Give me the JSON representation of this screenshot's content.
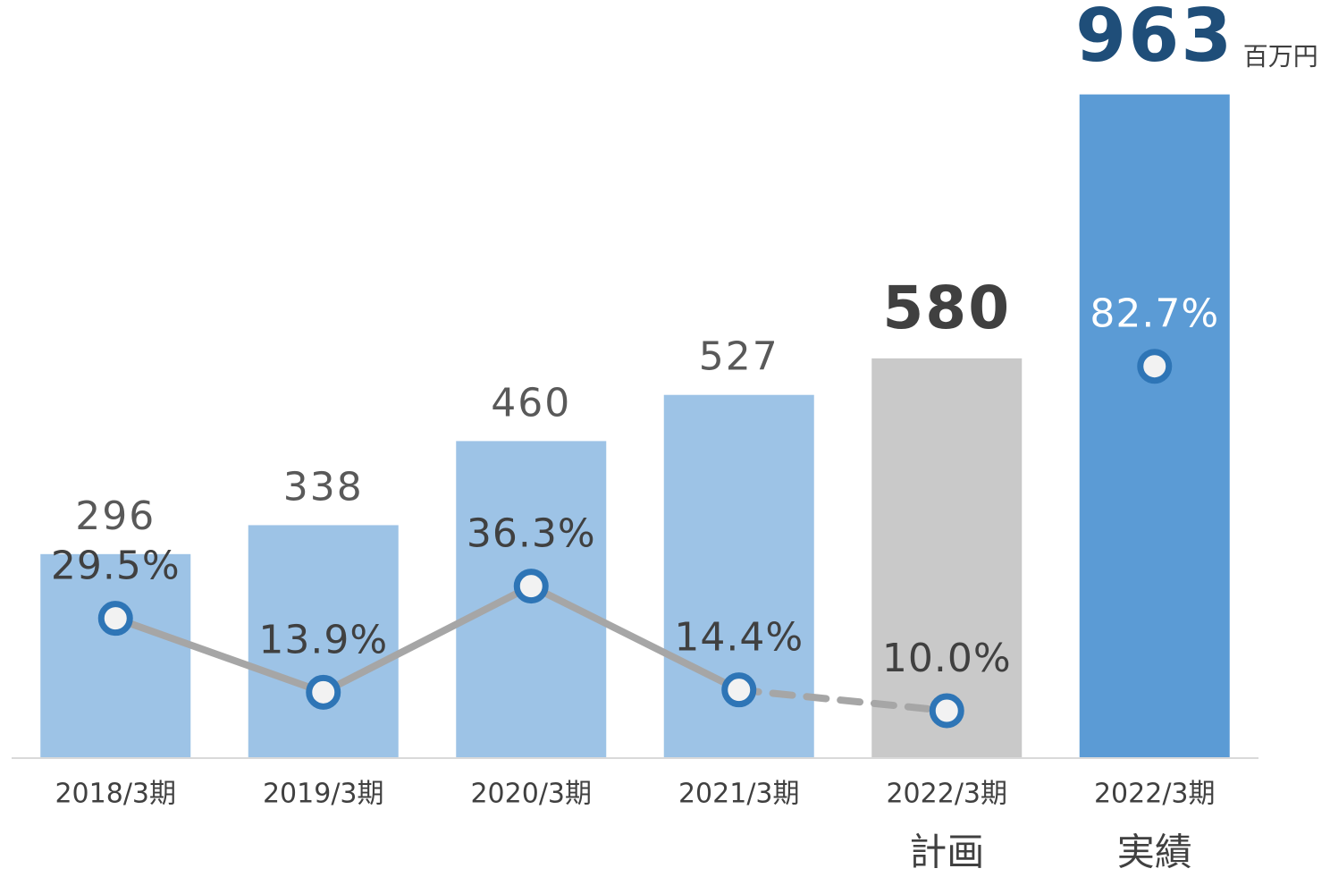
{
  "chart_data": {
    "type": "bar",
    "unit": "百万円",
    "categories": [
      "2018/3期",
      "2019/3期",
      "2020/3期",
      "2021/3期",
      "2022/3期",
      "2022/3期"
    ],
    "category_notes": [
      null,
      null,
      null,
      null,
      "計画",
      "実績"
    ],
    "values": [
      296,
      338,
      460,
      527,
      580,
      963
    ],
    "colors": [
      "#9dc3e6",
      "#9dc3e6",
      "#9dc3e6",
      "#9dc3e6",
      "#c9c9c9",
      "#5b9bd5"
    ],
    "ylim": [
      0,
      1100
    ],
    "y2lim": [
      0,
      160
    ],
    "series": [
      {
        "type": "line",
        "axis": "y2",
        "color": "#a6a6a6",
        "marker_color": "#2e75b6",
        "values": [
          29.5,
          13.9,
          36.3,
          14.4,
          10.0,
          82.7
        ],
        "value_labels": [
          "29.5%",
          "13.9%",
          "36.3%",
          "14.4%",
          "10.0%",
          "82.7%"
        ],
        "segment_styles": [
          "solid",
          "solid",
          "solid",
          "dashed",
          "none"
        ]
      }
    ]
  }
}
